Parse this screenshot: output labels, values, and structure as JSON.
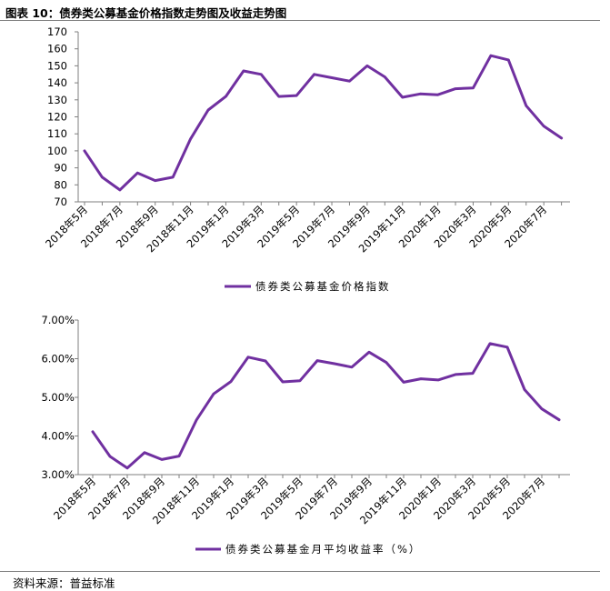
{
  "figure": {
    "title": "图表 10：债券类公募基金价格指数走势图及收益走势图",
    "source": "资料来源：普益标准",
    "line_color": "#7030a0"
  },
  "chart_data": [
    {
      "type": "line",
      "title": "",
      "xlabel": "",
      "ylabel": "",
      "ylim": [
        70,
        170
      ],
      "yticks": [
        "70",
        "80",
        "90",
        "100",
        "110",
        "120",
        "130",
        "140",
        "150",
        "160",
        "170"
      ],
      "tick_labels": [
        "2018年5月",
        "2018年7月",
        "2018年9月",
        "2018年11月",
        "2019年1月",
        "2019年3月",
        "2019年5月",
        "2019年7月",
        "2019年9月",
        "2019年11月",
        "2020年1月",
        "2020年3月",
        "2020年5月",
        "2020年7月"
      ],
      "x": [
        "2018年5月",
        "2018年6月",
        "2018年7月",
        "2018年8月",
        "2018年9月",
        "2018年10月",
        "2018年11月",
        "2018年12月",
        "2019年1月",
        "2019年2月",
        "2019年3月",
        "2019年4月",
        "2019年5月",
        "2019年6月",
        "2019年7月",
        "2019年8月",
        "2019年9月",
        "2019年10月",
        "2019年11月",
        "2019年12月",
        "2020年1月",
        "2020年2月",
        "2020年3月",
        "2020年4月",
        "2020年5月",
        "2020年6月",
        "2020年7月",
        "2020年8月"
      ],
      "series": [
        {
          "name": "债券类公募基金价格指数",
          "values": [
            100.0,
            84.5,
            77.0,
            87.0,
            82.5,
            84.5,
            107.0,
            124.0,
            132.0,
            147.0,
            145.0,
            132.0,
            132.5,
            145.0,
            143.0,
            141.0,
            150.0,
            143.5,
            131.5,
            133.5,
            133.0,
            136.5,
            137.0,
            156.0,
            153.5,
            126.5,
            114.5,
            107.5
          ]
        }
      ],
      "legend": "bottom-center",
      "grid": false
    },
    {
      "type": "line",
      "title": "",
      "xlabel": "",
      "ylabel": "",
      "ylim": [
        3.0,
        7.0
      ],
      "yticks": [
        "3.00%",
        "4.00%",
        "5.00%",
        "6.00%",
        "7.00%"
      ],
      "tick_labels": [
        "2018年5月",
        "2018年7月",
        "2018年9月",
        "2018年11月",
        "2019年1月",
        "2019年3月",
        "2019年5月",
        "2019年7月",
        "2019年9月",
        "2019年11月",
        "2020年1月",
        "2020年3月",
        "2020年5月",
        "2020年7月"
      ],
      "x": [
        "2018年5月",
        "2018年6月",
        "2018年7月",
        "2018年8月",
        "2018年9月",
        "2018年10月",
        "2018年11月",
        "2018年12月",
        "2019年1月",
        "2019年2月",
        "2019年3月",
        "2019年4月",
        "2019年5月",
        "2019年6月",
        "2019年7月",
        "2019年8月",
        "2019年9月",
        "2019年10月",
        "2019年11月",
        "2019年12月",
        "2020年1月",
        "2020年2月",
        "2020年3月",
        "2020年4月",
        "2020年5月",
        "2020年6月",
        "2020年7月",
        "2020年8月"
      ],
      "series": [
        {
          "name": "债券类公募基金月平均收益率（%）",
          "values": [
            4.11,
            3.47,
            3.17,
            3.57,
            3.39,
            3.48,
            4.41,
            5.09,
            5.41,
            6.04,
            5.94,
            5.4,
            5.43,
            5.95,
            5.87,
            5.78,
            6.17,
            5.9,
            5.39,
            5.48,
            5.45,
            5.59,
            5.62,
            6.39,
            6.3,
            5.2,
            4.7,
            4.42
          ]
        }
      ],
      "legend": "bottom-center",
      "grid": false
    }
  ]
}
